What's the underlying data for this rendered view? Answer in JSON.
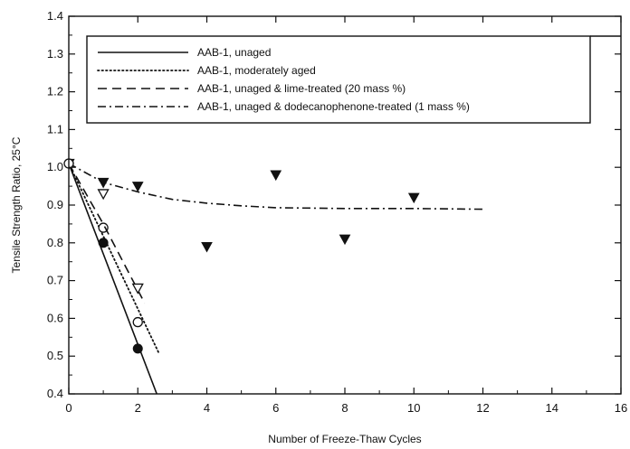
{
  "chart_data": {
    "type": "scatter",
    "xlabel": "Number of Freeze-Thaw Cycles",
    "ylabel": "Tensile Strength Ratio, 25°C",
    "xlim": [
      0,
      16
    ],
    "ylim": [
      0.4,
      1.4
    ],
    "xticks": [
      "0",
      "2",
      "4",
      "6",
      "8",
      "10",
      "12",
      "14",
      "16"
    ],
    "yticks": [
      "0.4",
      "0.5",
      "0.6",
      "0.7",
      "0.8",
      "0.9",
      "1.0",
      "1.1",
      "1.2",
      "1.3",
      "1.4"
    ],
    "grid": false,
    "legend_position": "top",
    "series": [
      {
        "name": "AAB-1, unaged",
        "line_style": "solid",
        "marker": "filled-circle",
        "points": [
          [
            0,
            1.01
          ],
          [
            1,
            0.8
          ],
          [
            2,
            0.52
          ]
        ],
        "fit": [
          [
            0,
            1.01
          ],
          [
            2.55,
            0.4
          ]
        ]
      },
      {
        "name": "AAB-1, moderately aged",
        "line_style": "dotted",
        "marker": "open-circle",
        "points": [
          [
            0,
            1.01
          ],
          [
            1,
            0.84
          ],
          [
            2,
            0.59
          ]
        ],
        "fit": [
          [
            0,
            1.01
          ],
          [
            2.6,
            0.51
          ]
        ]
      },
      {
        "name": "AAB-1, unaged & lime-treated (20 mass %)",
        "line_style": "dashed",
        "marker": "open-triangle-down",
        "points": [
          [
            0,
            1.01
          ],
          [
            1,
            0.93
          ],
          [
            2,
            0.68
          ]
        ],
        "fit": [
          [
            0,
            1.01
          ],
          [
            1,
            0.85
          ],
          [
            2.2,
            0.64
          ]
        ]
      },
      {
        "name": "AAB-1, unaged & dodecanophenone-treated (1 mass %)",
        "line_style": "dash-dot",
        "marker": "filled-triangle-down",
        "points": [
          [
            0,
            1.01
          ],
          [
            1,
            0.96
          ],
          [
            2,
            0.95
          ],
          [
            4,
            0.79
          ],
          [
            6,
            0.98
          ],
          [
            8,
            0.81
          ],
          [
            10,
            0.92
          ]
        ],
        "fit": [
          [
            0,
            1.01
          ],
          [
            1,
            0.96
          ],
          [
            2,
            0.935
          ],
          [
            3,
            0.915
          ],
          [
            4,
            0.905
          ],
          [
            5,
            0.898
          ],
          [
            6,
            0.893
          ],
          [
            8,
            0.891
          ],
          [
            10,
            0.891
          ],
          [
            12,
            0.889
          ]
        ]
      }
    ]
  }
}
